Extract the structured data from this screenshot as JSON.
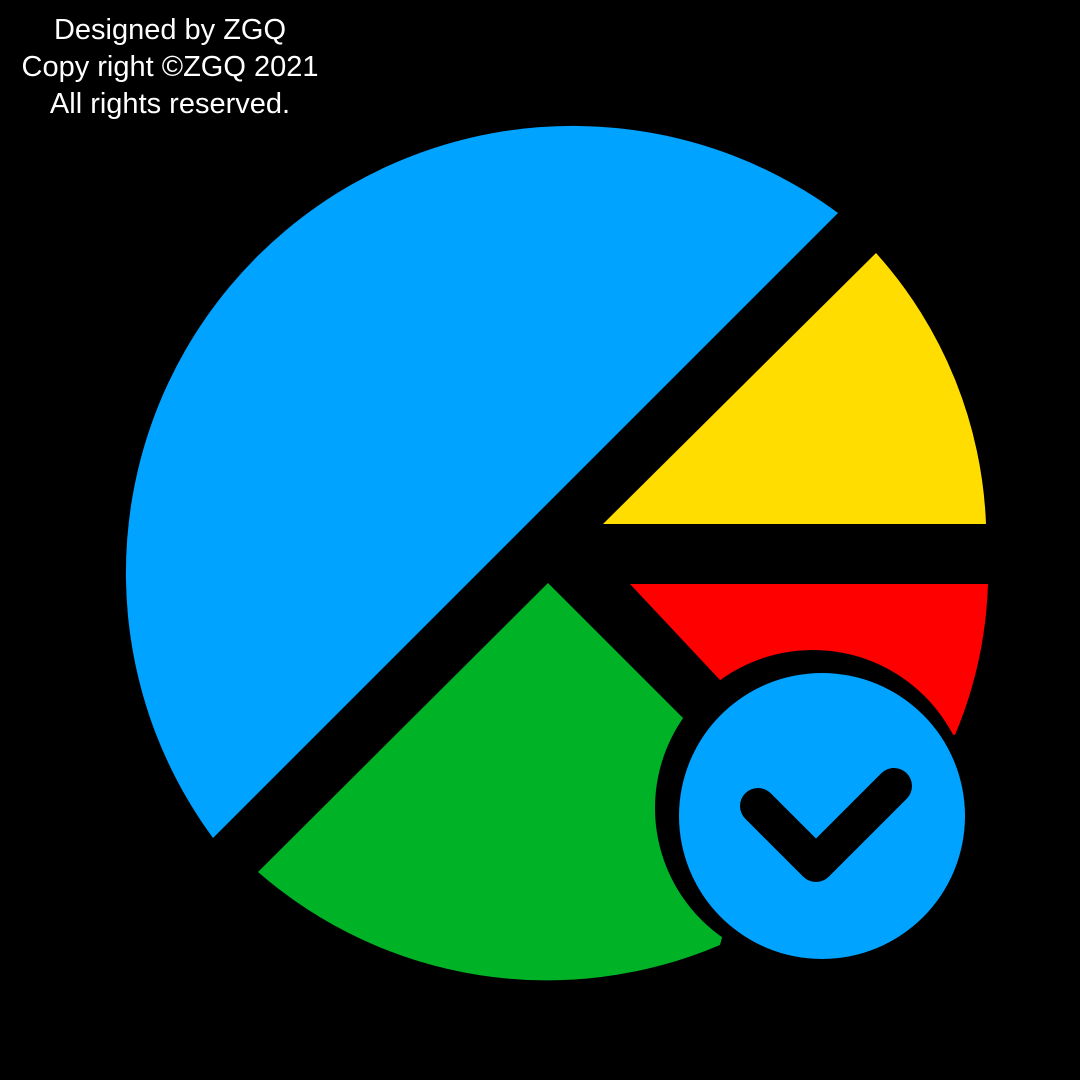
{
  "credits": {
    "line1": "Designed by ZGQ",
    "line2": "Copy right ©ZGQ 2021",
    "line3": "All rights reserved."
  },
  "icon": {
    "name": "pie-chart-check-icon",
    "badge_icon": "check-icon",
    "colors": {
      "background": "#000000",
      "blue": "#00a3ff",
      "yellow": "#ffdd00",
      "red": "#ff0000",
      "green": "#00b225",
      "credit_text": "#ffffff"
    }
  }
}
